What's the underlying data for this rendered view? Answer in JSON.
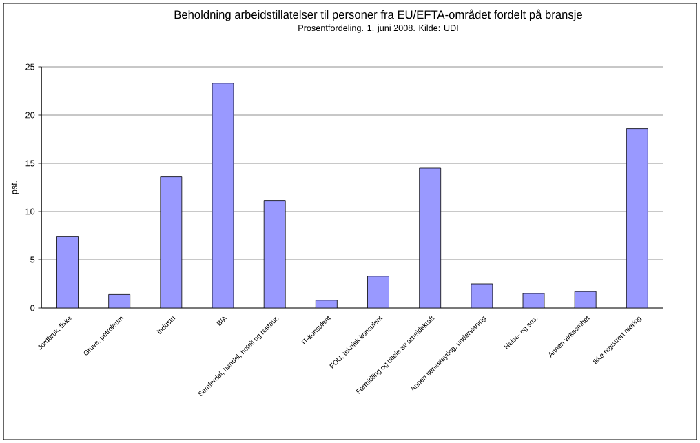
{
  "chart_data": {
    "type": "bar",
    "title": "Beholdning arbeidstillatelser til personer fra EU/EFTA-området fordelt på bransje",
    "subtitle": "Prosentfordeling. 1. juni 2008. Kilde: UDI",
    "ylabel": "pst.",
    "categories": [
      "Jordbruk, fiske",
      "Gruve, petroleum",
      "Industri",
      "B/A",
      "Samferdel, handel, hotell og restaur.",
      "IT-konsulent",
      "FOU, teknisk konsulent",
      "Formidling og utleie av arbeidskraft",
      "Annen tjenesteyting, undervisning",
      "Helse- og sos.",
      "Annen virksomhet",
      "Ikke registrert næring"
    ],
    "values": [
      7.4,
      1.4,
      13.6,
      23.3,
      11.1,
      0.8,
      3.3,
      14.5,
      2.5,
      1.5,
      1.7,
      18.6
    ],
    "color": "#9999ff",
    "ylim": [
      0,
      25
    ],
    "yticks": [
      0,
      5,
      10,
      15,
      20,
      25
    ],
    "grid": "y"
  }
}
